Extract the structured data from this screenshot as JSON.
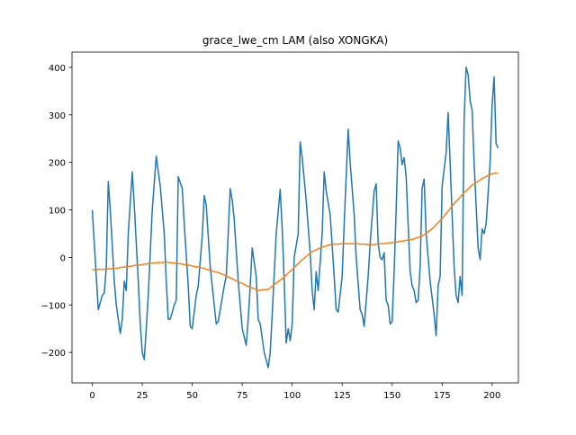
{
  "chart_data": {
    "type": "line",
    "title": "grace_lwe_cm LAM (also XONGKA)",
    "x": [
      0,
      2,
      3,
      5,
      6,
      7,
      8,
      9,
      11,
      12,
      14,
      15,
      16,
      17,
      18,
      20,
      21,
      23,
      24,
      25,
      26,
      27,
      28,
      30,
      32,
      34,
      36,
      37,
      38,
      39,
      41,
      42,
      43,
      45,
      46,
      48,
      49,
      50,
      52,
      53,
      55,
      56,
      57,
      59,
      61,
      62,
      63,
      66,
      67,
      69,
      70,
      71,
      73,
      75,
      77,
      78,
      79,
      80,
      82,
      83,
      84,
      86,
      88,
      89,
      90,
      92,
      94,
      95,
      96,
      97,
      98,
      99,
      100,
      101,
      103,
      104,
      105,
      107,
      109,
      110,
      111,
      112,
      113,
      115,
      116,
      117,
      119,
      121,
      122,
      123,
      125,
      126,
      128,
      129,
      131,
      132,
      134,
      135,
      136,
      138,
      139,
      141,
      142,
      143,
      144,
      145,
      146,
      147,
      148,
      149,
      150,
      151,
      152,
      153,
      154,
      155,
      156,
      157,
      159,
      160,
      161,
      162,
      163,
      164,
      165,
      166,
      167,
      168,
      169,
      171,
      172,
      173,
      174,
      175,
      177,
      178,
      179,
      181,
      182,
      183,
      184,
      185,
      186,
      187,
      188,
      189,
      190,
      191,
      193,
      194,
      195,
      196,
      197,
      199,
      200,
      201,
      202,
      203
    ],
    "series": [
      {
        "color": "#1f77b4",
        "values": [
          100,
          -40,
          -110,
          -80,
          -75,
          -20,
          160,
          100,
          -50,
          -100,
          -160,
          -130,
          -50,
          -70,
          50,
          180,
          110,
          -50,
          -140,
          -200,
          -215,
          -150,
          -80,
          100,
          213,
          150,
          50,
          -50,
          -130,
          -130,
          -100,
          -90,
          170,
          145,
          70,
          -60,
          -145,
          -150,
          -80,
          -60,
          45,
          130,
          110,
          -20,
          -100,
          -140,
          -135,
          -60,
          -40,
          145,
          120,
          80,
          -50,
          -150,
          -185,
          -130,
          -60,
          20,
          -40,
          -130,
          -140,
          -200,
          -232,
          -200,
          -120,
          50,
          143,
          60,
          -50,
          -180,
          -150,
          -175,
          -140,
          0,
          50,
          243,
          210,
          120,
          10,
          -70,
          -110,
          -30,
          -70,
          50,
          180,
          140,
          90,
          -40,
          -110,
          -115,
          -40,
          70,
          270,
          200,
          90,
          0,
          -110,
          -120,
          -145,
          -40,
          30,
          140,
          155,
          30,
          0,
          -5,
          10,
          -90,
          -100,
          -140,
          -135,
          -30,
          100,
          245,
          230,
          195,
          210,
          170,
          -30,
          -60,
          -70,
          -95,
          -90,
          -20,
          145,
          165,
          50,
          0,
          -50,
          -120,
          -165,
          -60,
          -40,
          150,
          220,
          305,
          200,
          -20,
          -80,
          -95,
          -40,
          -80,
          290,
          400,
          385,
          330,
          310,
          200,
          20,
          -5,
          60,
          50,
          70,
          200,
          320,
          380,
          240,
          230
        ]
      },
      {
        "color": "#ff7f0e",
        "values": [
          -26,
          -26,
          -25,
          -25,
          -25,
          -25,
          -24,
          -24,
          -23,
          -23,
          -21,
          -21,
          -20,
          -20,
          -19,
          -18,
          -17,
          -16,
          -16,
          -15,
          -14,
          -14,
          -13,
          -12,
          -11,
          -11,
          -10,
          -10,
          -10,
          -11,
          -12,
          -12,
          -13,
          -14,
          -15,
          -16,
          -17,
          -18,
          -20,
          -20,
          -22,
          -23,
          -25,
          -27,
          -30,
          -31,
          -32,
          -37,
          -39,
          -43,
          -45,
          -47,
          -51,
          -55,
          -59,
          -61,
          -63,
          -64,
          -68,
          -70,
          -69,
          -68,
          -67,
          -64,
          -61,
          -54,
          -48,
          -45,
          -41,
          -37,
          -33,
          -29,
          -25,
          -21,
          -13,
          -9,
          -5,
          2,
          9,
          12,
          14,
          16,
          18,
          22,
          23,
          24,
          27,
          28,
          28,
          28,
          29,
          29,
          29,
          29,
          29,
          29,
          28,
          28,
          28,
          27,
          27,
          27,
          28,
          28,
          29,
          29,
          29,
          30,
          30,
          31,
          31,
          32,
          32,
          33,
          34,
          34,
          35,
          36,
          37,
          38,
          39,
          41,
          42,
          44,
          45,
          48,
          51,
          54,
          57,
          64,
          69,
          73,
          78,
          82,
          92,
          97,
          103,
          113,
          118,
          122,
          127,
          132,
          136,
          140,
          144,
          148,
          152,
          155,
          160,
          163,
          166,
          168,
          170,
          174,
          176,
          177,
          177,
          178
        ]
      }
    ],
    "xlim": [
      -10.15,
      213.15
    ],
    "xticks": [
      0,
      25,
      50,
      75,
      100,
      125,
      150,
      175,
      200
    ],
    "ylim": [
      -264,
      432
    ],
    "yticks": [
      {
        "value": -200,
        "label": "−200"
      },
      {
        "value": -100,
        "label": "−100"
      },
      0,
      100,
      200,
      300,
      400
    ]
  }
}
